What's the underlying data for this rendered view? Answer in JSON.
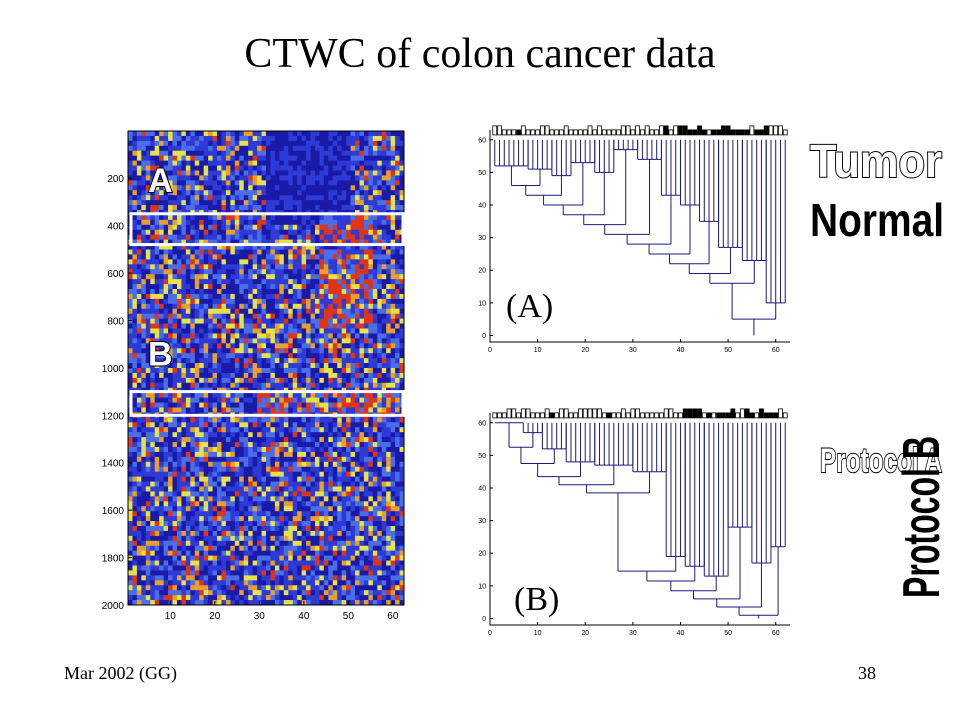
{
  "slide": {
    "title": "CTWC of colon cancer data",
    "footer_left": "Mar 2002 (GG)",
    "page_number": "38"
  },
  "chart_data": [
    {
      "type": "heatmap",
      "colors": [
        "#1a1aa8",
        "#2e3ad6",
        "#4a6ee8",
        "#e6e24a",
        "#e8a028",
        "#e03418"
      ],
      "x_ticks": [
        "10",
        "20",
        "30",
        "40",
        "50",
        "60"
      ],
      "y_ticks": [
        "200",
        "400",
        "600",
        "800",
        "1000",
        "1200",
        "1400",
        "1600",
        "1800",
        "2000"
      ],
      "x_range": [
        1,
        62
      ],
      "y_range": [
        1,
        2000
      ],
      "clusters": [
        {
          "label": "A",
          "y_from": 350,
          "y_to": 480
        },
        {
          "label": "B",
          "y_from": 1100,
          "y_to": 1200
        }
      ]
    },
    {
      "type": "dendrogram",
      "panel_label": "(A)",
      "x_ticks": [
        "0",
        "10",
        "20",
        "30",
        "40",
        "50",
        "60"
      ],
      "y_ticks": [
        "0",
        "10",
        "20",
        "30",
        "40",
        "50",
        "60"
      ],
      "xlim": [
        0,
        63
      ],
      "ylim": [
        -2,
        63
      ],
      "legend": {
        "top": "Tumor",
        "bottom": "Normal"
      }
    },
    {
      "type": "dendrogram",
      "panel_label": "(B)",
      "x_ticks": [
        "0",
        "10",
        "20",
        "30",
        "40",
        "50",
        "60"
      ],
      "y_ticks": [
        "0",
        "10",
        "20",
        "30",
        "40",
        "50",
        "60"
      ],
      "xlim": [
        0,
        63
      ],
      "ylim": [
        -2,
        63
      ],
      "legend": {
        "top": "Protocol A",
        "bottom": "Protocol B"
      }
    }
  ]
}
